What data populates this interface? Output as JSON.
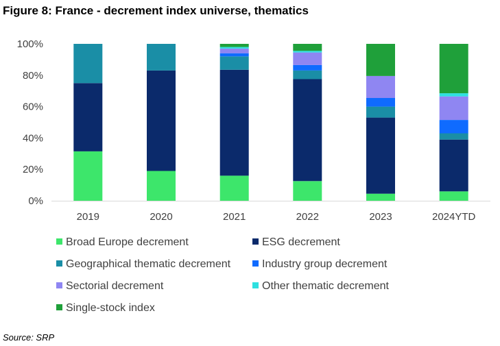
{
  "figure": {
    "title": "Figure 8: France - decrement index universe, thematics",
    "source": "Source: SRP"
  },
  "chart_data": {
    "type": "bar",
    "stacked": true,
    "categories": [
      "2019",
      "2020",
      "2021",
      "2022",
      "2023",
      "2024YTD"
    ],
    "ylim": [
      0,
      100
    ],
    "yticks": [
      0,
      20,
      40,
      60,
      80,
      100
    ],
    "ytick_labels": [
      "0%",
      "20%",
      "40%",
      "60%",
      "80%",
      "100%"
    ],
    "grid": false,
    "legend_position": "bottom",
    "series": [
      {
        "name": "Broad Europe decrement",
        "color": "#3de66b",
        "values": [
          31.5,
          19,
          16,
          12.5,
          4.5,
          6
        ]
      },
      {
        "name": "ESG decrement",
        "color": "#0b2a6b",
        "values": [
          43.5,
          64,
          67.5,
          65,
          48.5,
          33
        ]
      },
      {
        "name": "Geographical thematic decrement",
        "color": "#1a8ea6",
        "values": [
          25,
          17,
          8.5,
          5.5,
          7,
          4
        ]
      },
      {
        "name": "Industry group decrement",
        "color": "#0f6bff",
        "values": [
          0,
          0,
          2,
          3.5,
          5.5,
          8.5
        ]
      },
      {
        "name": "Sectorial decrement",
        "color": "#8f86f2",
        "values": [
          0,
          0,
          3,
          8,
          14,
          15
        ]
      },
      {
        "name": "Other thematic decrement",
        "color": "#2ee0e0",
        "values": [
          0,
          0,
          1,
          1,
          0,
          2
        ]
      },
      {
        "name": "Single-stock index",
        "color": "#1fa03a",
        "values": [
          0,
          0,
          2,
          4.5,
          20.5,
          31.5
        ]
      }
    ]
  }
}
